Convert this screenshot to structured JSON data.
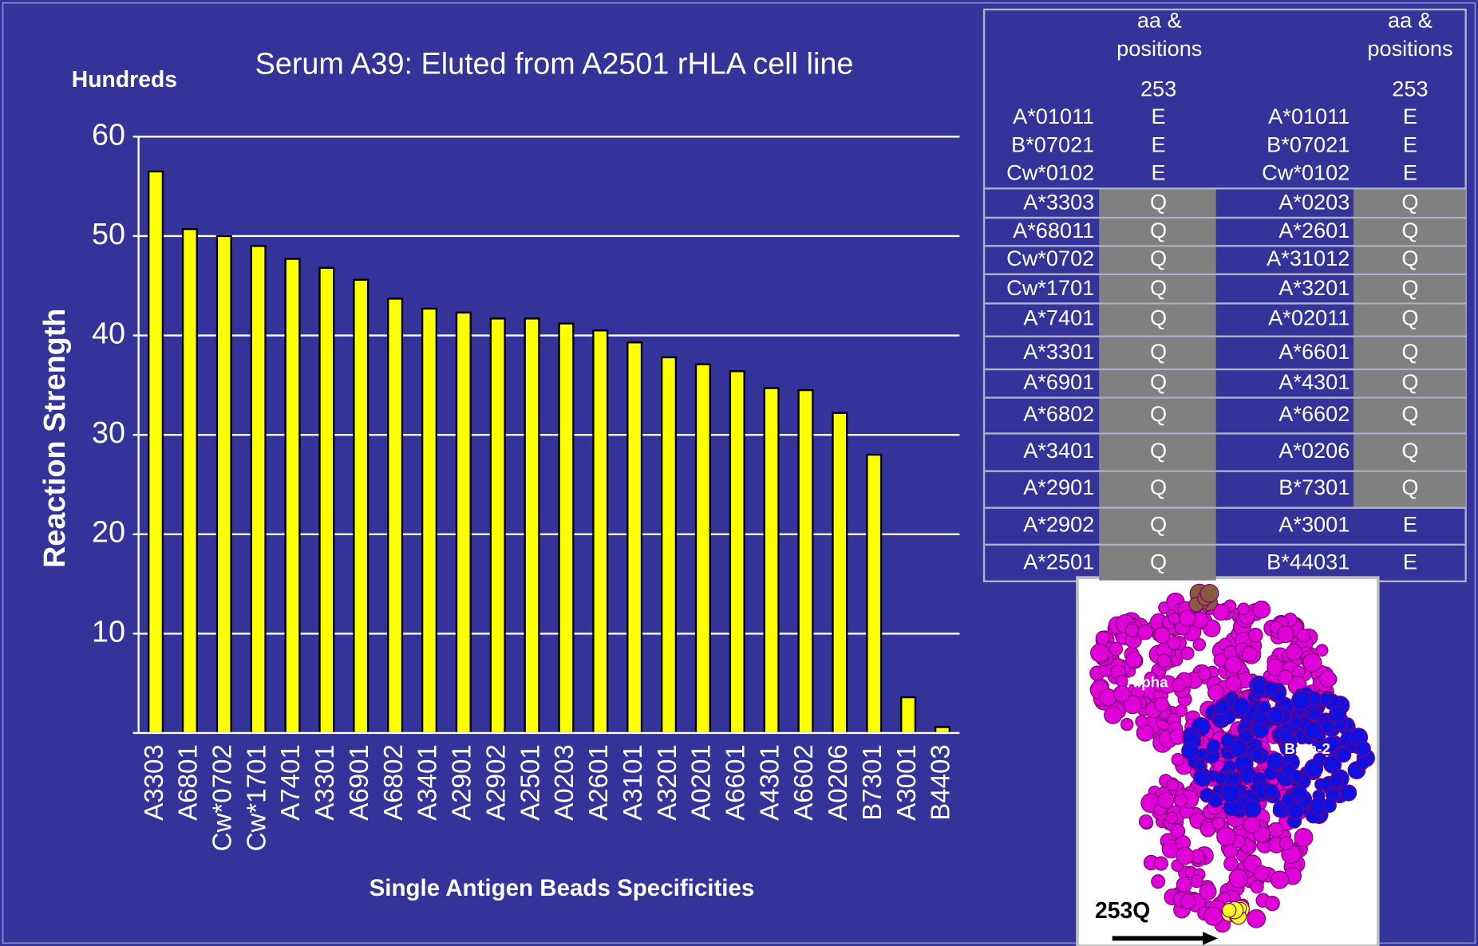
{
  "chart_data": {
    "type": "bar",
    "title": "Serum A39: Eluted from A2501 rHLA cell line",
    "unit_label": "Hundreds",
    "y_label": "Reaction Strength",
    "x_label": "Single Antigen Beads Specificities",
    "categories": [
      "A3303",
      "A6801",
      "Cw*0702",
      "Cw*1701",
      "A7401",
      "A3301",
      "A6901",
      "A6802",
      "A3401",
      "A2901",
      "A2902",
      "A2501",
      "A0203",
      "A2601",
      "A3101",
      "A3201",
      "A0201",
      "A6601",
      "A4301",
      "A6602",
      "A0206",
      "B7301",
      "A3001",
      "B4403"
    ],
    "values": [
      56.5,
      50.7,
      50,
      49,
      47.7,
      46.8,
      45.6,
      43.7,
      42.7,
      42.3,
      41.7,
      41.7,
      41.2,
      40.5,
      39.3,
      37.8,
      37.1,
      36.4,
      34.7,
      34.5,
      32.2,
      28,
      3.6,
      0.6
    ],
    "color": "#ffff00",
    "ylim": [
      0,
      60
    ],
    "yticks": [
      10,
      20,
      30,
      40,
      50,
      60
    ],
    "grid": true
  },
  "table": {
    "headers": [
      "aa & positions",
      "aa & positions"
    ],
    "positions": [
      "253",
      "253"
    ],
    "shade_color": "#808080",
    "rows": [
      [
        "A*01011",
        "E",
        "A*01011",
        "E"
      ],
      [
        "B*07021",
        "E",
        "B*07021",
        "E"
      ],
      [
        "Cw*0102",
        "E",
        "Cw*0102",
        "E"
      ],
      [
        "A*3303",
        "Q",
        "A*0203",
        "Q"
      ],
      [
        "A*68011",
        "Q",
        "A*2601",
        "Q"
      ],
      [
        "Cw*0702",
        "Q",
        "A*31012",
        "Q"
      ],
      [
        "Cw*1701",
        "Q",
        "A*3201",
        "Q"
      ],
      [
        "A*7401",
        "Q",
        "A*02011",
        "Q"
      ],
      [
        "A*3301",
        "Q",
        "A*6601",
        "Q"
      ],
      [
        "A*6901",
        "Q",
        "A*4301",
        "Q"
      ],
      [
        "A*6802",
        "Q",
        "A*6602",
        "Q"
      ],
      [
        "A*3401",
        "Q",
        "A*0206",
        "Q"
      ],
      [
        "A*2901",
        "Q",
        "B*7301",
        "Q"
      ],
      [
        "A*2902",
        "Q",
        "A*3001",
        "E"
      ],
      [
        "A*2501",
        "Q",
        "B*44031",
        "E"
      ]
    ],
    "shaded": [
      [
        false,
        false
      ],
      [
        false,
        false
      ],
      [
        false,
        false
      ],
      [
        true,
        true
      ],
      [
        true,
        true
      ],
      [
        true,
        true
      ],
      [
        true,
        true
      ],
      [
        true,
        true
      ],
      [
        true,
        true
      ],
      [
        true,
        true
      ],
      [
        true,
        true
      ],
      [
        true,
        true
      ],
      [
        true,
        true
      ],
      [
        true,
        false
      ],
      [
        true,
        false
      ]
    ]
  },
  "figure": {
    "labels": [
      "Alpha",
      "Beta-2",
      "253Q"
    ]
  }
}
